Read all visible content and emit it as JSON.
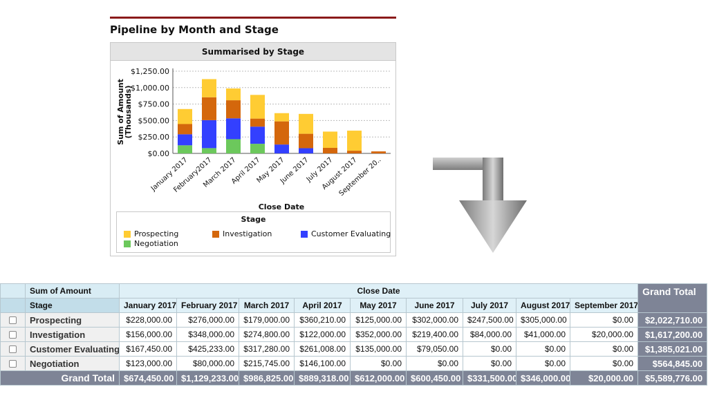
{
  "report": {
    "title": "Pipeline by Month and Stage",
    "chart_header": "Summarised by Stage"
  },
  "chart_data": {
    "type": "bar",
    "stacked": true,
    "ylabel": "Sum of Amount\n(Thousands)",
    "ylabel_line1": "Sum of Amount",
    "ylabel_line2": "(Thousands)",
    "xlabel": "Close Date",
    "ylim": [
      0,
      1250
    ],
    "yticks": [
      "$1,250.00",
      "$1,000.00",
      "$750.00",
      "$500.00",
      "$250.00",
      "$0.00"
    ],
    "ytick_values": [
      1250,
      1000,
      750,
      500,
      250,
      0
    ],
    "categories": [
      "January 2017",
      "February2017",
      "March 2017",
      "April 2017",
      "May 2017",
      "June 2017",
      "July 2017",
      "August 2017",
      "September 20.."
    ],
    "series": [
      {
        "name": "Negotiation",
        "color": "#6cc85c",
        "values": [
          123,
          80,
          215.745,
          146.1,
          0,
          0,
          0,
          0,
          0
        ]
      },
      {
        "name": "Customer Evaluating",
        "color": "#3340ff",
        "values": [
          167.45,
          425.233,
          317.28,
          261.008,
          135,
          79.05,
          0,
          0,
          0
        ]
      },
      {
        "name": "Investigation",
        "color": "#d4670c",
        "values": [
          156,
          348,
          274.8,
          122,
          352,
          219.4,
          84,
          41,
          20
        ]
      },
      {
        "name": "Prospecting",
        "color": "#ffcc33",
        "values": [
          228,
          276,
          179,
          360.21,
          125,
          302,
          247.5,
          305,
          0
        ]
      }
    ],
    "legend_title": "Stage",
    "legend_position": "bottom",
    "grid": true
  },
  "legend": {
    "title": "Stage",
    "items": [
      {
        "label": "Prospecting",
        "color": "#ffcc33"
      },
      {
        "label": "Investigation",
        "color": "#d4670c"
      },
      {
        "label": "Customer Evaluating",
        "color": "#3340ff"
      },
      {
        "label": "Negotiation",
        "color": "#6cc85c"
      }
    ]
  },
  "table": {
    "sum_label": "Sum of Amount",
    "close_date_label": "Close Date",
    "stage_label": "Stage",
    "grand_total_label": "Grand Total",
    "months": [
      "January 2017",
      "February 2017",
      "March 2017",
      "April 2017",
      "May 2017",
      "June 2017",
      "July 2017",
      "August 2017",
      "September 2017"
    ],
    "rows": [
      {
        "stage": "Prospecting",
        "values": [
          "$228,000.00",
          "$276,000.00",
          "$179,000.00",
          "$360,210.00",
          "$125,000.00",
          "$302,000.00",
          "$247,500.00",
          "$305,000.00",
          "$0.00"
        ],
        "total": "$2,022,710.00"
      },
      {
        "stage": "Investigation",
        "values": [
          "$156,000.00",
          "$348,000.00",
          "$274,800.00",
          "$122,000.00",
          "$352,000.00",
          "$219,400.00",
          "$84,000.00",
          "$41,000.00",
          "$20,000.00"
        ],
        "total": "$1,617,200.00"
      },
      {
        "stage": "Customer Evaluating",
        "values": [
          "$167,450.00",
          "$425,233.00",
          "$317,280.00",
          "$261,008.00",
          "$135,000.00",
          "$79,050.00",
          "$0.00",
          "$0.00",
          "$0.00"
        ],
        "total": "$1,385,021.00"
      },
      {
        "stage": "Negotiation",
        "values": [
          "$123,000.00",
          "$80,000.00",
          "$215,745.00",
          "$146,100.00",
          "$0.00",
          "$0.00",
          "$0.00",
          "$0.00",
          "$0.00"
        ],
        "total": "$564,845.00"
      }
    ],
    "grand_totals": [
      "$674,450.00",
      "$1,129,233.00",
      "$986,825.00",
      "$889,318.00",
      "$612,000.00",
      "$600,450.00",
      "$331,500.00",
      "$346,000.00",
      "$20,000.00"
    ],
    "grand_grand_total": "$5,589,776.00"
  },
  "icons": {
    "arrow": "down-turn-arrow-icon",
    "checkbox": "checkbox-icon"
  }
}
